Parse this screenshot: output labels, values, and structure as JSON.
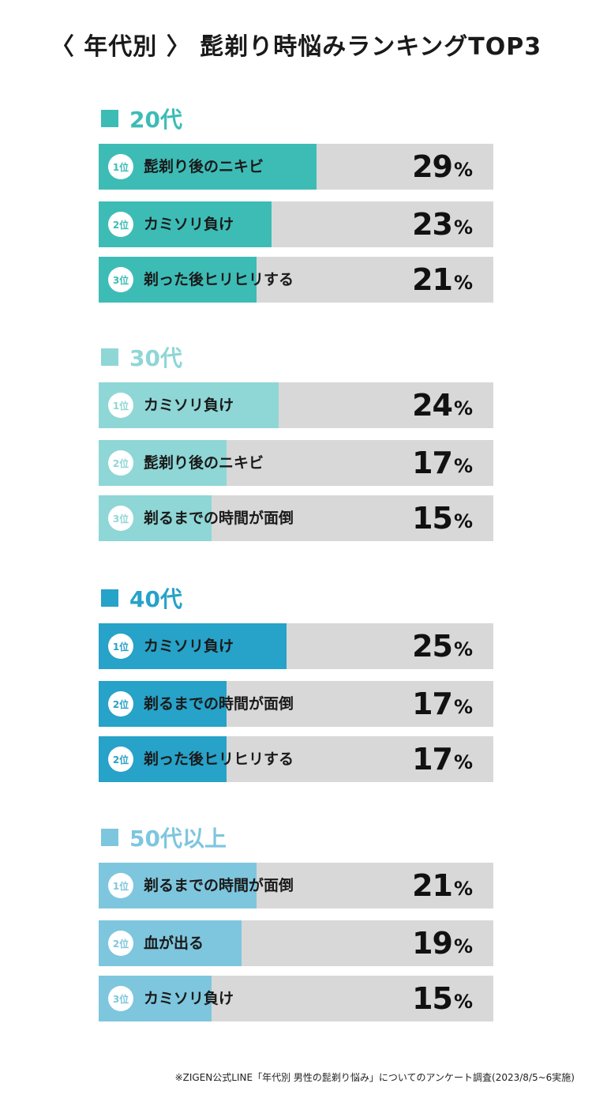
{
  "title": "〈 年代別 〉 髭剃り時悩みランキングTOP3",
  "footnote": "※ZIGEN公式LINE「年代別 男性の髭剃り悩み」についてのアンケート調査(2023/8/5~6実施)",
  "chart_data": [
    {
      "type": "bar",
      "title": "20代",
      "color": "#3dbcb6",
      "rank_prefix": "位",
      "categories": [
        "髭剃り後のニキビ",
        "カミソリ負け",
        "剃った後ヒリヒリする"
      ],
      "ranks": [
        "1",
        "2",
        "3"
      ],
      "values": [
        29,
        23,
        21
      ],
      "unit": "%"
    },
    {
      "type": "bar",
      "title": "30代",
      "color": "#8fd6d6",
      "rank_prefix": "位",
      "categories": [
        "カミソリ負け",
        "髭剃り後のニキビ",
        "剃るまでの時間が面倒"
      ],
      "ranks": [
        "1",
        "2",
        "3"
      ],
      "values": [
        24,
        17,
        15
      ],
      "unit": "%"
    },
    {
      "type": "bar",
      "title": "40代",
      "color": "#27a2c8",
      "rank_prefix": "位",
      "categories": [
        "カミソリ負け",
        "剃るまでの時間が面倒",
        "剃った後ヒリヒリする"
      ],
      "ranks": [
        "1",
        "2",
        "2"
      ],
      "values": [
        25,
        17,
        17
      ],
      "unit": "%"
    },
    {
      "type": "bar",
      "title": "50代以上",
      "color": "#7ec6de",
      "rank_prefix": "位",
      "categories": [
        "剃るまでの時間が面倒",
        "血が出る",
        "カミソリ負け"
      ],
      "ranks": [
        "1",
        "2",
        "3"
      ],
      "values": [
        21,
        19,
        15
      ],
      "unit": "%"
    }
  ]
}
